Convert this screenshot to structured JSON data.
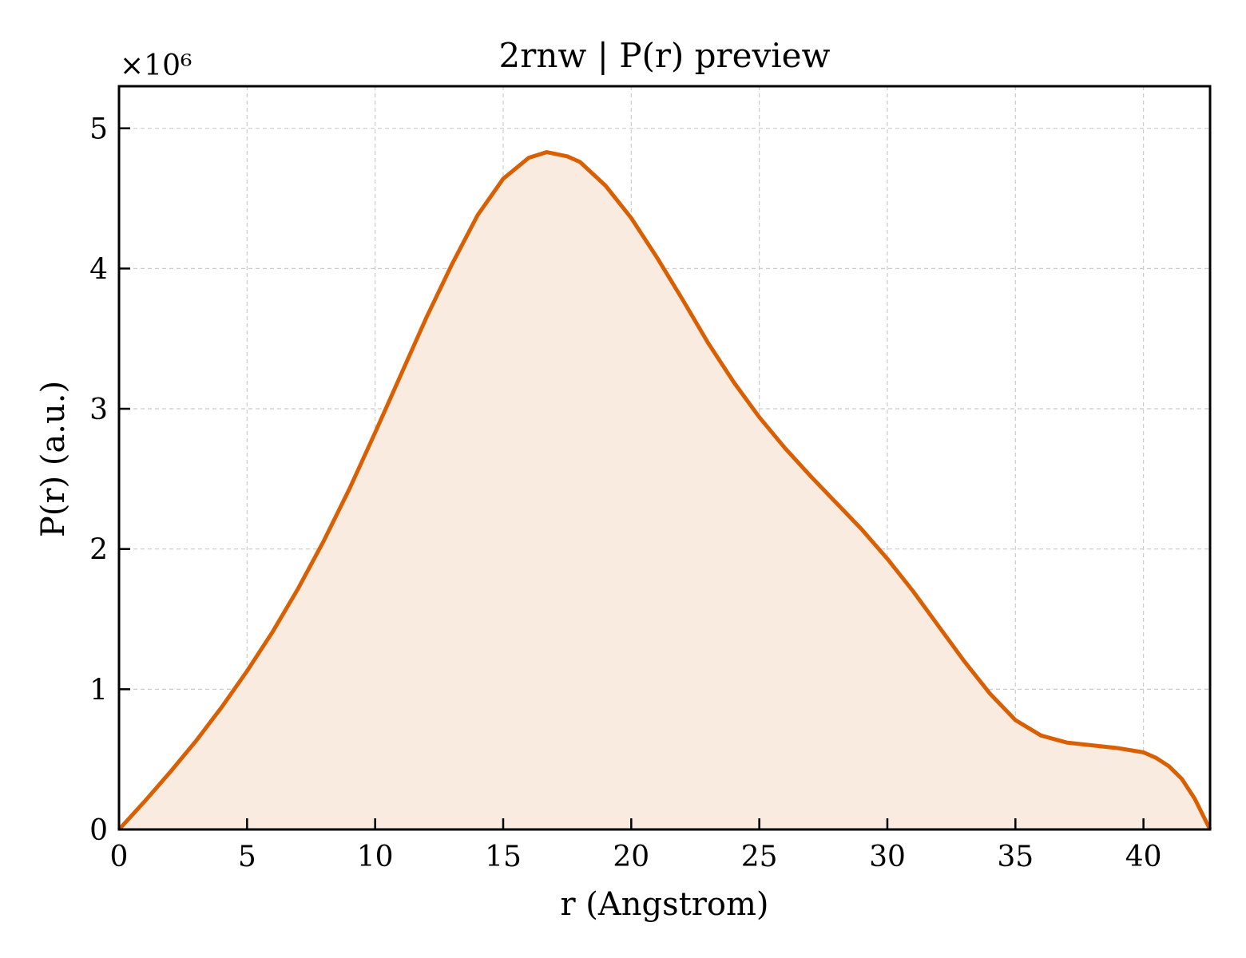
{
  "chart_data": {
    "type": "area",
    "title": "2rnw | P(r) preview",
    "xlabel": "r (Angstrom)",
    "ylabel": "P(r) (a.u.)",
    "y_multiplier": "×10⁶",
    "xlim": [
      0,
      42.6
    ],
    "ylim": [
      0,
      5.3
    ],
    "x_ticks": [
      0,
      5,
      10,
      15,
      20,
      25,
      30,
      35,
      40
    ],
    "y_ticks": [
      0,
      1,
      2,
      3,
      4,
      5
    ],
    "grid": true,
    "legend": "none",
    "colors": {
      "line": "#d95f02",
      "fill": "#f9ebe0"
    },
    "series": [
      {
        "x": [
          0,
          1,
          2,
          3,
          4,
          5,
          6,
          7,
          8,
          9,
          10,
          11,
          12,
          13,
          14,
          15,
          16,
          16.7,
          17.5,
          18,
          19,
          20,
          21,
          22,
          23,
          24,
          25,
          26,
          27,
          28,
          29,
          30,
          31,
          32,
          33,
          34,
          35,
          36,
          37,
          38,
          39,
          40,
          40.5,
          41,
          41.5,
          42,
          42.6
        ],
        "y": [
          0,
          0.2,
          0.41,
          0.63,
          0.87,
          1.13,
          1.41,
          1.72,
          2.06,
          2.43,
          2.83,
          3.24,
          3.65,
          4.03,
          4.38,
          4.64,
          4.79,
          4.83,
          4.8,
          4.76,
          4.59,
          4.36,
          4.08,
          3.78,
          3.47,
          3.19,
          2.94,
          2.72,
          2.52,
          2.33,
          2.14,
          1.93,
          1.7,
          1.45,
          1.2,
          0.97,
          0.78,
          0.67,
          0.62,
          0.6,
          0.58,
          0.55,
          0.51,
          0.45,
          0.36,
          0.22,
          0
        ]
      }
    ]
  }
}
